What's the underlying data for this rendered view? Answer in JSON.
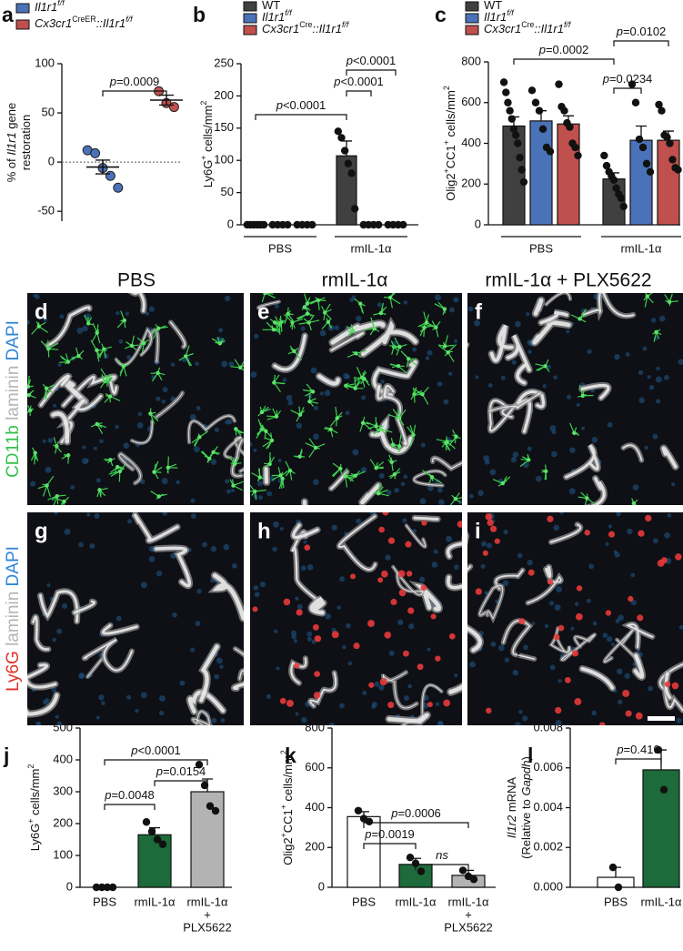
{
  "chart_data": [
    {
      "panel": "a",
      "type": "dot",
      "ylim": [
        -60,
        100
      ],
      "yticks": [
        -50,
        0,
        50,
        100
      ],
      "zero_line": true,
      "y_label": [
        [
          {
            "t": "% of "
          },
          {
            "t": "Il1r1",
            "i": true
          },
          {
            "t": " gene"
          }
        ],
        [
          {
            "t": "restoration"
          }
        ]
      ],
      "series": [
        {
          "name": [
            {
              "t": "Il1r1",
              "i": true
            },
            {
              "t": "f/f",
              "i": true,
              "s": true
            }
          ],
          "color": "#4a72b8",
          "values": [
            -5
          ],
          "errors": [
            7
          ],
          "points": [
            [
              12,
              9,
              -6,
              -14,
              -26
            ]
          ]
        },
        {
          "name": [
            {
              "t": "Cx3cr1",
              "i": true
            },
            {
              "t": "CreER",
              "s": true
            },
            {
              "t": "::Il1r1",
              "i": true
            },
            {
              "t": "f/f",
              "i": true,
              "s": true
            }
          ],
          "color": "#c0504d",
          "values": [
            63
          ],
          "errors": [
            5
          ],
          "points": [
            [
              72,
              60,
              56
            ]
          ]
        }
      ],
      "annotations": [
        [
          {
            "t": "p",
            "i": true
          },
          {
            "t": "=0.0009"
          }
        ]
      ]
    },
    {
      "panel": "b",
      "type": "bar",
      "ylim": [
        0,
        250
      ],
      "yticks": [
        0,
        50,
        100,
        150,
        200,
        250
      ],
      "y_label": [
        [
          {
            "t": "Ly6G"
          },
          {
            "t": "+",
            "s": true
          },
          {
            "t": " cells/mm"
          },
          {
            "t": "2",
            "s": true
          }
        ]
      ],
      "categories": [
        "PBS",
        "rmIL-1α"
      ],
      "series": [
        {
          "name": [
            {
              "t": "WT"
            }
          ],
          "color": "#404040",
          "values": [
            0,
            107
          ],
          "errors": [
            0,
            23
          ],
          "points": [
            [
              0,
              0,
              0,
              0,
              0,
              0
            ],
            [
              145,
              135,
              115,
              95,
              80,
              25
            ]
          ]
        },
        {
          "name": [
            {
              "t": "Il1r1",
              "i": true
            },
            {
              "t": "f/f",
              "i": true,
              "s": true
            }
          ],
          "color": "#4a72b8",
          "values": [
            0,
            0
          ],
          "errors": [
            0,
            0
          ],
          "points": [
            [
              0,
              0,
              0,
              0
            ],
            [
              0,
              0,
              0,
              0
            ]
          ]
        },
        {
          "name": [
            {
              "t": "Cx3cr1",
              "i": true
            },
            {
              "t": "Cre",
              "s": true
            },
            {
              "t": "::Il1r1",
              "i": true
            },
            {
              "t": "f/f",
              "i": true,
              "s": true
            }
          ],
          "color": "#c0504d",
          "values": [
            0,
            0
          ],
          "errors": [
            0,
            0
          ],
          "points": [
            [
              0,
              0,
              0,
              0
            ],
            [
              0,
              0,
              0,
              0
            ]
          ]
        }
      ],
      "annotations": [
        [
          {
            "t": "p",
            "i": true
          },
          {
            "t": "<0.0001"
          }
        ],
        [
          {
            "t": "p",
            "i": true
          },
          {
            "t": "<0.0001"
          }
        ],
        [
          {
            "t": "p",
            "i": true
          },
          {
            "t": "<0.0001"
          }
        ]
      ]
    },
    {
      "panel": "c",
      "type": "bar",
      "ylim": [
        0,
        800
      ],
      "yticks": [
        0,
        200,
        400,
        600,
        800
      ],
      "y_label": [
        [
          {
            "t": "Olig2"
          },
          {
            "t": "+",
            "s": true
          },
          {
            "t": "CC1"
          },
          {
            "t": "+",
            "s": true
          },
          {
            "t": " cells/mm"
          },
          {
            "t": "2",
            "s": true
          }
        ]
      ],
      "categories": [
        "PBS",
        "rmIL-1α"
      ],
      "series": [
        {
          "name": [
            {
              "t": "WT"
            }
          ],
          "color": "#404040",
          "values": [
            485,
            225
          ],
          "errors": [
            45,
            30
          ],
          "points": [
            [
              700,
              650,
              600,
              560,
              520,
              470,
              440,
              400,
              330,
              270,
              210
            ],
            [
              340,
              290,
              260,
              240,
              220,
              180,
              150,
              130,
              90
            ]
          ]
        },
        {
          "name": [
            {
              "t": "Il1r1",
              "i": true
            },
            {
              "t": "f/f",
              "i": true,
              "s": true
            }
          ],
          "color": "#4a72b8",
          "values": [
            510,
            415
          ],
          "errors": [
            50,
            70
          ],
          "points": [
            [
              660,
              600,
              560,
              470,
              380,
              360
            ],
            [
              690,
              600,
              420,
              380,
              300,
              260
            ]
          ]
        },
        {
          "name": [
            {
              "t": "Cx3cr1",
              "i": true
            },
            {
              "t": "Cre",
              "s": true
            },
            {
              "t": "::Il1r1",
              "i": true
            },
            {
              "t": "f/f",
              "i": true,
              "s": true
            }
          ],
          "color": "#c0504d",
          "values": [
            495,
            415
          ],
          "errors": [
            40,
            45
          ],
          "points": [
            [
              690,
              580,
              560,
              500,
              480,
              400,
              380,
              340
            ],
            [
              590,
              560,
              440,
              430,
              400,
              320,
              280,
              270
            ]
          ]
        }
      ],
      "annotations": [
        [
          {
            "t": "p",
            "i": true
          },
          {
            "t": "=0.0002"
          }
        ],
        [
          {
            "t": "p",
            "i": true
          },
          {
            "t": "=0.0102"
          }
        ],
        [
          {
            "t": "p",
            "i": true
          },
          {
            "t": "=0.0234"
          }
        ]
      ]
    },
    {
      "panel": "j",
      "type": "bar",
      "ylim": [
        0,
        500
      ],
      "yticks": [
        0,
        100,
        200,
        300,
        400,
        500
      ],
      "y_label": [
        [
          {
            "t": "Ly6G"
          },
          {
            "t": "+",
            "s": true
          },
          {
            "t": " cells/mm"
          },
          {
            "t": "2",
            "s": true
          }
        ]
      ],
      "categories": [
        "PBS",
        "rmIL-1α",
        [
          "rmIL-1α",
          "+",
          "PLX5622"
        ]
      ],
      "colors": [
        "#ffffff",
        "#1d6a3a",
        "#b3b3b3"
      ],
      "values": [
        0,
        165,
        300
      ],
      "errors": [
        0,
        22,
        40
      ],
      "points": [
        [
          0,
          0,
          0,
          0
        ],
        [
          205,
          175,
          150,
          135
        ],
        [
          385,
          320,
          255,
          240
        ]
      ],
      "annotations": [
        [
          {
            "t": "p",
            "i": true
          },
          {
            "t": "<0.0001"
          }
        ],
        [
          {
            "t": "p",
            "i": true
          },
          {
            "t": "=0.0154"
          }
        ],
        [
          {
            "t": "p",
            "i": true
          },
          {
            "t": "=0.0048"
          }
        ]
      ]
    },
    {
      "panel": "k",
      "type": "bar",
      "ylim": [
        0,
        800
      ],
      "yticks": [
        0,
        200,
        400,
        600,
        800
      ],
      "y_label": [
        [
          {
            "t": "Olig2"
          },
          {
            "t": "+",
            "s": true
          },
          {
            "t": "CC1"
          },
          {
            "t": "+",
            "s": true
          },
          {
            "t": " cells/mm"
          },
          {
            "t": "2",
            "s": true
          }
        ]
      ],
      "categories": [
        "PBS",
        "rmIL-1α",
        [
          "rmIL-1α",
          "+",
          "PLX5622"
        ]
      ],
      "colors": [
        "#ffffff",
        "#1d6a3a",
        "#b3b3b3"
      ],
      "values": [
        355,
        115,
        60
      ],
      "errors": [
        25,
        30,
        25
      ],
      "points": [
        [
          385,
          345,
          330
        ],
        [
          150,
          120,
          80
        ],
        [
          85,
          55,
          40
        ]
      ],
      "annotations": [
        [
          {
            "t": "p",
            "i": true
          },
          {
            "t": "=0.0006"
          }
        ],
        [
          {
            "t": "p",
            "i": true
          },
          {
            "t": "=0.0019"
          }
        ],
        [
          {
            "t": "ns",
            "i": true
          }
        ]
      ]
    },
    {
      "panel": "l",
      "type": "bar",
      "ylim": [
        0,
        0.008
      ],
      "yticks": [
        {
          "value": 0,
          "label": "0.000"
        },
        0.002,
        0.004,
        0.006,
        0.008
      ],
      "y_label": [
        [
          {
            "t": "Il1r2",
            "i": true
          },
          {
            "t": " mRNA"
          }
        ],
        [
          {
            "t": "(Relative to "
          },
          {
            "t": "Gapdh",
            "i": true
          },
          {
            "t": ")"
          }
        ]
      ],
      "categories": [
        "PBS",
        "rmIL-1α"
      ],
      "colors": [
        "#ffffff",
        "#1d6a3a"
      ],
      "values": [
        0.0005,
        0.0059
      ],
      "errors": [
        0.0005,
        0.001
      ],
      "points": [
        [
          0.001,
          0
        ],
        [
          0.0069,
          0.0049
        ]
      ],
      "annotations": [
        [
          {
            "t": "p",
            "i": true
          },
          {
            "t": "=0.410"
          }
        ]
      ]
    }
  ],
  "images": {
    "column_titles": [
      "PBS",
      "rmIL-1α",
      "rmIL-1α + PLX5622"
    ],
    "row_labels": [
      [
        {
          "t": "CD11b",
          "color": "#35c24a"
        },
        {
          "t": " laminin ",
          "color": "#b5b5b5"
        },
        {
          "t": "DAPI",
          "color": "#2f86d6"
        }
      ],
      [
        {
          "t": "Ly6G",
          "color": "#e0302a"
        },
        {
          "t": " laminin ",
          "color": "#b5b5b5"
        },
        {
          "t": "DAPI",
          "color": "#2f86d6"
        }
      ]
    ],
    "panel_letters": [
      "d",
      "e",
      "f",
      "g",
      "h",
      "i"
    ]
  }
}
